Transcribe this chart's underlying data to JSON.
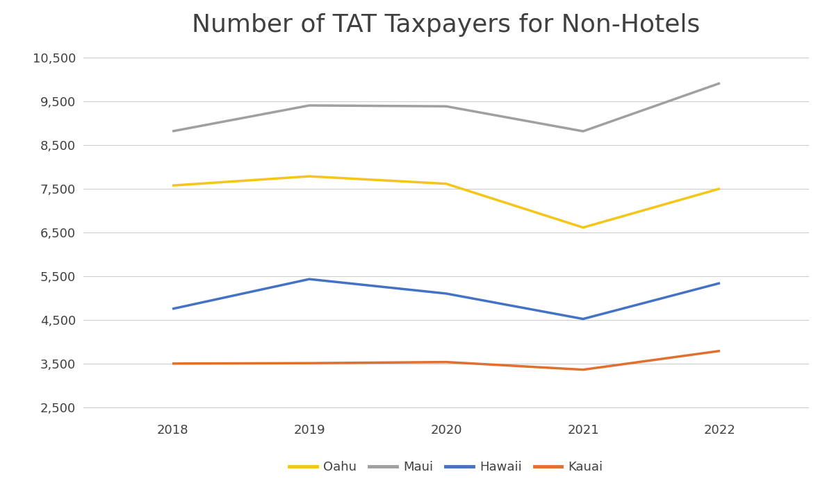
{
  "title": "Number of TAT Taxpayers for Non-Hotels",
  "title_fontsize": 26,
  "years": [
    2018,
    2019,
    2020,
    2021,
    2022
  ],
  "series": {
    "Oahu": [
      7580,
      7790,
      7620,
      6620,
      7510
    ],
    "Maui": [
      8820,
      9410,
      9390,
      8820,
      9920
    ],
    "Hawaii": [
      4760,
      5440,
      5110,
      4530,
      5350
    ],
    "Kauai": [
      3510,
      3520,
      3545,
      3370,
      3800
    ]
  },
  "colors": {
    "Oahu": "#f5c518",
    "Maui": "#a0a0a0",
    "Hawaii": "#4472c4",
    "Kauai": "#e07030"
  },
  "ylim": [
    2300,
    10700
  ],
  "yticks": [
    2500,
    3500,
    4500,
    5500,
    6500,
    7500,
    8500,
    9500,
    10500
  ],
  "ytick_labels": [
    "2,500",
    "3,500",
    "4,500",
    "5,500",
    "6,500",
    "7,500",
    "8,500",
    "9,500",
    "10,500"
  ],
  "line_width": 2.5,
  "legend_fontsize": 13,
  "tick_fontsize": 13,
  "background_color": "#ffffff",
  "grid_color": "#cccccc",
  "text_color": "#404040"
}
